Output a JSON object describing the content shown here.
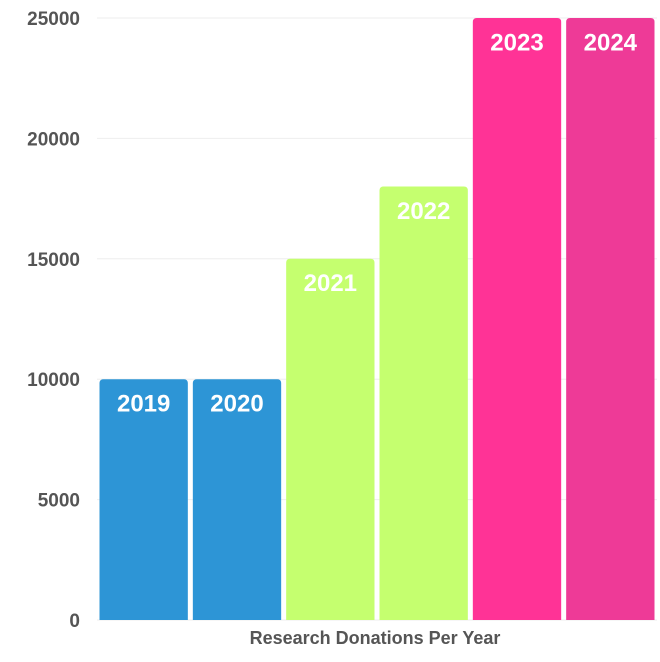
{
  "chart_data": {
    "type": "bar",
    "title": "Research Donations Per Year",
    "categories": [
      "2019",
      "2020",
      "2021",
      "2022",
      "2023",
      "2024"
    ],
    "values": [
      10000,
      10000,
      15000,
      18000,
      25000,
      25000
    ],
    "colors": [
      "#2d95d6",
      "#2d95d6",
      "#c5ff6f",
      "#c5ff6f",
      "#ff3396",
      "#ee3a97"
    ],
    "ylim": [
      0,
      25000
    ],
    "yticks": [
      0,
      5000,
      10000,
      15000,
      20000,
      25000
    ],
    "grid": true
  }
}
